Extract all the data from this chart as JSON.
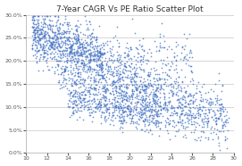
{
  "title": "7-Year CAGR Vs PE Ratio Scatter Plot",
  "xlim": [
    10,
    30
  ],
  "ylim": [
    0.0,
    0.3
  ],
  "xticks": [
    10,
    12,
    14,
    16,
    18,
    20,
    22,
    24,
    26,
    28,
    30
  ],
  "yticks": [
    0.0,
    0.05,
    0.1,
    0.15,
    0.2,
    0.25,
    0.3
  ],
  "dot_color": "#4472C4",
  "dot_size": 1.5,
  "alpha": 0.75,
  "background_color": "#FFFFFF",
  "plot_bg_color": "#FFFFFF",
  "grid_color": "#C8C8C8",
  "title_fontsize": 6.5,
  "tick_fontsize": 4.5,
  "seed": 42,
  "n_points": 1800
}
